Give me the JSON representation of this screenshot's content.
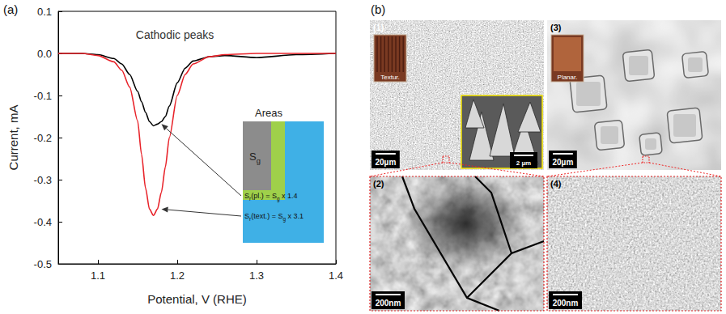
{
  "chart_data": {
    "type": "line",
    "panel": "(a)",
    "annotation": "Cathodic peaks",
    "x_label": "Potential, V (RHE)",
    "y_label": "Current, mA",
    "x": [
      1.05,
      1.08,
      1.1,
      1.12,
      1.13,
      1.14,
      1.15,
      1.155,
      1.16,
      1.165,
      1.17,
      1.175,
      1.18,
      1.185,
      1.19,
      1.2,
      1.21,
      1.22,
      1.24,
      1.26,
      1.3,
      1.35,
      1.4
    ],
    "series": [
      {
        "color": "#000000",
        "values": [
          0.0,
          0.0,
          -0.003,
          -0.012,
          -0.025,
          -0.05,
          -0.09,
          -0.115,
          -0.14,
          -0.162,
          -0.172,
          -0.168,
          -0.162,
          -0.15,
          -0.125,
          -0.07,
          -0.035,
          -0.018,
          -0.008,
          -0.005,
          -0.01,
          -0.003,
          0.0
        ]
      },
      {
        "color": "#e8232a",
        "values": [
          0.0,
          0.0,
          -0.005,
          -0.02,
          -0.04,
          -0.08,
          -0.16,
          -0.24,
          -0.32,
          -0.37,
          -0.385,
          -0.37,
          -0.33,
          -0.27,
          -0.2,
          -0.1,
          -0.05,
          -0.025,
          -0.008,
          -0.003,
          0.0,
          0.0,
          0.0
        ]
      }
    ],
    "xlim": [
      1.05,
      1.4
    ],
    "xticks": [
      1.1,
      1.2,
      1.3,
      1.4
    ],
    "ylim": [
      -0.5,
      0.1
    ],
    "yticks": [
      -0.5,
      -0.4,
      -0.3,
      -0.2,
      -0.1,
      {
        "value": 0,
        "label": "0.0"
      },
      0.1
    ],
    "grid": false,
    "line_style": "solid",
    "inset": {
      "title": "Areas",
      "labels": [
        [
          "S",
          {
            "sub": "g"
          }
        ],
        [
          "S",
          {
            "sub": "r"
          },
          "(pl.) = S",
          {
            "sub": "g"
          },
          " x 1.4"
        ],
        [
          "S",
          {
            "sub": "r"
          },
          "(text.) = S",
          {
            "sub": "g"
          },
          " x 3.1"
        ]
      ]
    }
  },
  "figure_b": {
    "panel": "(b)",
    "images": [
      {
        "number": "(1)",
        "photo_label": "Textur.",
        "scale_bar": "20µm",
        "inset_scale_bar": "2 µm"
      },
      {
        "number": "(2)",
        "scale_bar": "200nm"
      },
      {
        "number": "(3)",
        "photo_label": "Planar.",
        "scale_bar": "20µm"
      },
      {
        "number": "(4)",
        "scale_bar": "200nm"
      }
    ]
  }
}
